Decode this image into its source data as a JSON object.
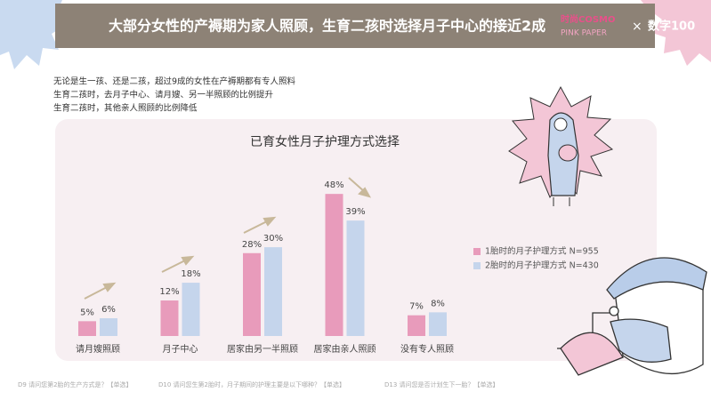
{
  "header": {
    "title": "大部分女性的产褥期为家人照顾，生育二孩时选择月子中心的接近2成",
    "logos": [
      "时尚COSMO",
      "PINK PAPER",
      "×",
      "数字100"
    ]
  },
  "bullets": [
    "无论是生一孩、还是二孩，超过9成的女性在产褥期都有专人照料",
    "生育二孩时，去月子中心、请月嫂、另一半照顾的比例提升",
    "生育二孩时，其他亲人照顾的比例降低"
  ],
  "chart_data": {
    "type": "bar",
    "title": "已育女性月子护理方式选择",
    "categories": [
      "请月嫂照顾",
      "月子中心",
      "居家由另一半照顾",
      "居家由亲人照顾",
      "没有专人照顾"
    ],
    "series": [
      {
        "name": "1胎时的月子护理方式 N=955",
        "color": "#e89bbb",
        "values": [
          5,
          12,
          28,
          48,
          7
        ],
        "value_labels": [
          "5%",
          "12%",
          "28%",
          "48%",
          "7%"
        ]
      },
      {
        "name": "2胎时的月子护理方式 N=430",
        "color": "#c5d5ec",
        "values": [
          6,
          18,
          30,
          39,
          8
        ],
        "value_labels": [
          "6%",
          "18%",
          "30%",
          "39%",
          "8%"
        ]
      }
    ]
  },
  "footnotes": [
    "D9 请问您第2胎的生产方式是？【单选】",
    "D10 请问您生第2胎时，月子期间的护理主要是以下哪种？【单选】",
    "D13 请问您是否计划生下一胎？【单选】"
  ]
}
